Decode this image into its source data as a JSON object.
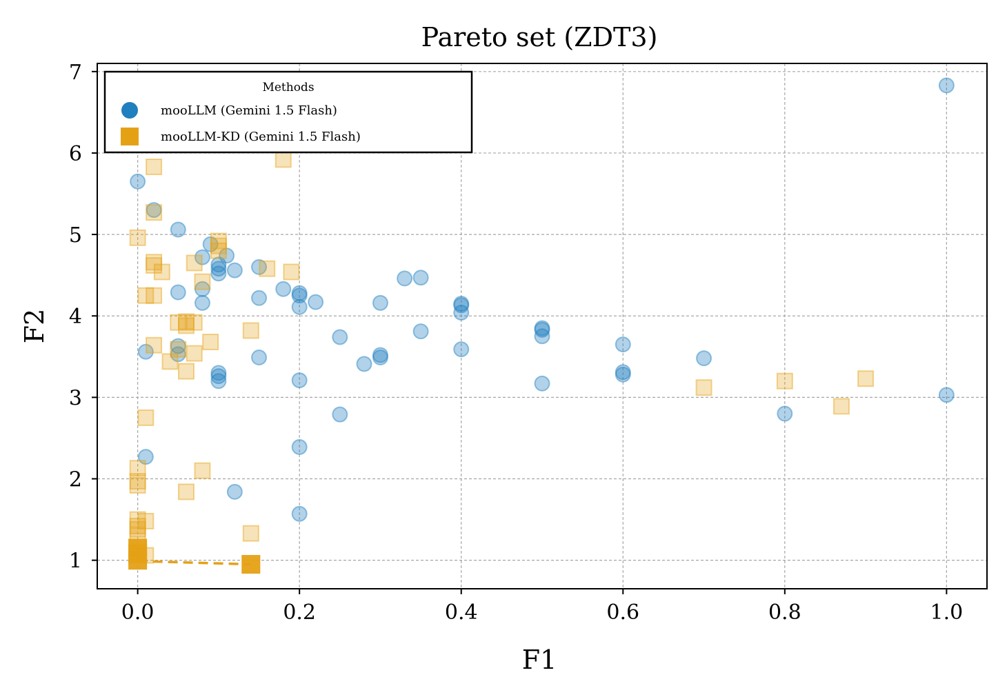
{
  "chart_data": {
    "type": "scatter",
    "title": "Pareto set (ZDT3)",
    "xlabel": "F1",
    "ylabel": "F2",
    "xlim": [
      -0.05,
      1.05
    ],
    "ylim": [
      0.65,
      7.1
    ],
    "xticks": [
      0.0,
      0.2,
      0.4,
      0.6,
      0.8,
      1.0
    ],
    "xtick_labels": [
      "0.0",
      "0.2",
      "0.4",
      "0.6",
      "0.8",
      "1.0"
    ],
    "yticks": [
      1,
      2,
      3,
      4,
      5,
      6,
      7
    ],
    "ytick_labels": [
      "1",
      "2",
      "3",
      "4",
      "5",
      "6",
      "7"
    ],
    "grid": true,
    "legend": {
      "title": "Methods",
      "placement": "upper-left",
      "entries": [
        "mooLLM (Gemini 1.5 Flash)",
        "mooLLM-KD (Gemini 1.5 Flash)"
      ]
    },
    "series": [
      {
        "name": "mooLLM (Gemini 1.5 Flash)",
        "marker": "circle",
        "color": "#1f7fbf",
        "points": [
          [
            0.0,
            5.65
          ],
          [
            0.02,
            5.3
          ],
          [
            0.05,
            5.06
          ],
          [
            0.09,
            4.88
          ],
          [
            0.11,
            4.74
          ],
          [
            0.08,
            4.72
          ],
          [
            0.1,
            4.63
          ],
          [
            0.1,
            4.58
          ],
          [
            0.1,
            4.52
          ],
          [
            0.12,
            4.56
          ],
          [
            0.15,
            4.6
          ],
          [
            0.08,
            4.33
          ],
          [
            0.05,
            4.29
          ],
          [
            0.08,
            4.16
          ],
          [
            0.15,
            4.22
          ],
          [
            0.18,
            4.33
          ],
          [
            0.2,
            4.28
          ],
          [
            0.2,
            4.25
          ],
          [
            0.2,
            4.11
          ],
          [
            0.22,
            4.17
          ],
          [
            0.33,
            4.46
          ],
          [
            0.35,
            4.47
          ],
          [
            0.3,
            4.16
          ],
          [
            0.4,
            4.15
          ],
          [
            0.4,
            4.13
          ],
          [
            0.4,
            4.04
          ],
          [
            0.5,
            3.85
          ],
          [
            0.5,
            3.83
          ],
          [
            0.5,
            3.75
          ],
          [
            0.35,
            3.81
          ],
          [
            0.25,
            3.74
          ],
          [
            0.4,
            3.59
          ],
          [
            0.6,
            3.65
          ],
          [
            0.01,
            3.56
          ],
          [
            0.05,
            3.63
          ],
          [
            0.05,
            3.53
          ],
          [
            0.15,
            3.49
          ],
          [
            0.3,
            3.52
          ],
          [
            0.3,
            3.49
          ],
          [
            0.28,
            3.41
          ],
          [
            0.1,
            3.3
          ],
          [
            0.1,
            3.26
          ],
          [
            0.1,
            3.2
          ],
          [
            0.2,
            3.21
          ],
          [
            0.5,
            3.17
          ],
          [
            0.6,
            3.31
          ],
          [
            0.6,
            3.28
          ],
          [
            0.7,
            3.48
          ],
          [
            1.0,
            3.03
          ],
          [
            0.8,
            2.8
          ],
          [
            0.25,
            2.79
          ],
          [
            0.2,
            2.39
          ],
          [
            0.01,
            2.27
          ],
          [
            0.12,
            1.84
          ],
          [
            0.2,
            1.57
          ],
          [
            1.0,
            6.83
          ]
        ]
      },
      {
        "name": "mooLLM-KD (Gemini 1.5 Flash)",
        "marker": "square",
        "color": "#e5a116",
        "points": [
          [
            0.02,
            5.83
          ],
          [
            0.18,
            5.92
          ],
          [
            0.02,
            5.27
          ],
          [
            0.0,
            4.96
          ],
          [
            0.1,
            4.92
          ],
          [
            0.1,
            4.86
          ],
          [
            0.1,
            4.8
          ],
          [
            0.02,
            4.66
          ],
          [
            0.02,
            4.62
          ],
          [
            0.03,
            4.54
          ],
          [
            0.07,
            4.65
          ],
          [
            0.16,
            4.58
          ],
          [
            0.19,
            4.54
          ],
          [
            0.08,
            4.42
          ],
          [
            0.01,
            4.25
          ],
          [
            0.02,
            4.25
          ],
          [
            0.05,
            3.92
          ],
          [
            0.06,
            3.93
          ],
          [
            0.06,
            3.88
          ],
          [
            0.07,
            3.92
          ],
          [
            0.14,
            3.82
          ],
          [
            0.02,
            3.64
          ],
          [
            0.09,
            3.68
          ],
          [
            0.05,
            3.59
          ],
          [
            0.07,
            3.54
          ],
          [
            0.04,
            3.44
          ],
          [
            0.06,
            3.32
          ],
          [
            0.01,
            2.75
          ],
          [
            0.0,
            2.13
          ],
          [
            0.0,
            1.97
          ],
          [
            0.0,
            1.92
          ],
          [
            0.08,
            2.1
          ],
          [
            0.06,
            1.84
          ],
          [
            0.0,
            1.5
          ],
          [
            0.01,
            1.48
          ],
          [
            0.0,
            1.42
          ],
          [
            0.0,
            1.38
          ],
          [
            0.0,
            1.3
          ],
          [
            0.14,
            1.33
          ],
          [
            0.0,
            1.1
          ],
          [
            0.01,
            1.06
          ],
          [
            0.7,
            3.12
          ],
          [
            0.8,
            3.2
          ],
          [
            0.9,
            3.23
          ],
          [
            0.87,
            2.89
          ]
        ],
        "front": [
          [
            0.0,
            1.15
          ],
          [
            0.0,
            1.08
          ],
          [
            0.0,
            1.0
          ],
          [
            0.14,
            0.95
          ]
        ],
        "front_line": [
          [
            0.0,
            0.99
          ],
          [
            0.14,
            0.95
          ]
        ]
      }
    ]
  }
}
